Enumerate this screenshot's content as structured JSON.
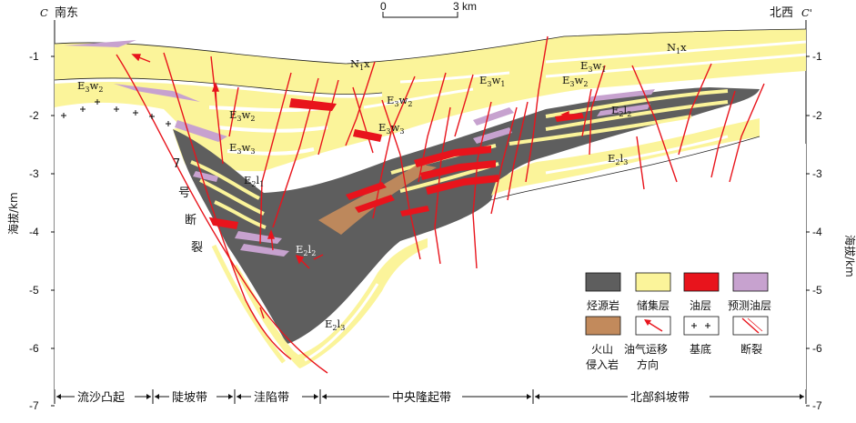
{
  "header": {
    "left_letter": "C",
    "left_dir": "南东",
    "right_dir": "北西",
    "right_letter": "C'",
    "scale_start": "0",
    "scale_end": "3 km"
  },
  "axis": {
    "label": "海拔/km",
    "ticks": [
      "-1",
      "-2",
      "-3",
      "-4",
      "-5",
      "-6",
      "-7"
    ]
  },
  "units": {
    "u1": {
      "a": "E",
      "sub": "3",
      "b": "w",
      "sub2": "2"
    },
    "u2": {
      "a": "E",
      "sub": "3",
      "b": "w",
      "sub2": "2"
    },
    "u3": {
      "a": "E",
      "sub": "3",
      "b": "w",
      "sub2": "3"
    },
    "u4": {
      "a": "E",
      "sub": "2",
      "b": "l",
      "sub2": "1"
    },
    "u5": {
      "a": "E",
      "sub": "2",
      "b": "l",
      "sub2": "2"
    },
    "u6": {
      "a": "E",
      "sub": "2",
      "b": "l",
      "sub2": "3"
    },
    "u7": {
      "a": "N",
      "sub": "1",
      "b": "x",
      "sub2": ""
    },
    "u8": {
      "a": "E",
      "sub": "3",
      "b": "w",
      "sub2": "2"
    },
    "u9": {
      "a": "E",
      "sub": "3",
      "b": "w",
      "sub2": "3"
    },
    "u10": {
      "a": "E",
      "sub": "3",
      "b": "w",
      "sub2": "1"
    },
    "u11": {
      "a": "E",
      "sub": "3",
      "b": "w",
      "sub2": "1"
    },
    "u12": {
      "a": "E",
      "sub": "3",
      "b": "w",
      "sub2": "2"
    },
    "u13": {
      "a": "E",
      "sub": "2",
      "b": "l",
      "sub2": "2"
    },
    "u14": {
      "a": "E",
      "sub": "2",
      "b": "l",
      "sub2": "3"
    },
    "u15": {
      "a": "N",
      "sub": "1",
      "b": "x",
      "sub2": ""
    }
  },
  "fault_name": [
    "7",
    "号",
    "断",
    "裂"
  ],
  "zones": [
    "流沙凸起",
    "陡坡带",
    "洼陷带",
    "中央隆起带",
    "北部斜坡带"
  ],
  "legend": [
    {
      "label": "烃源岩",
      "color": "#5e5e5e"
    },
    {
      "label": "储集层",
      "color": "#fbf49a"
    },
    {
      "label": "油层",
      "color": "#e8141c"
    },
    {
      "label": "预测油层",
      "color": "#c7a2cf"
    },
    {
      "label1": "火山",
      "label2": "侵入岩",
      "color": "#c28a5c"
    },
    {
      "label1": "油气运移",
      "label2": "方向",
      "icon": "migration-arrow"
    },
    {
      "label": "基底",
      "icon": "plus-signs"
    },
    {
      "label": "断裂",
      "icon": "fault-line"
    }
  ]
}
